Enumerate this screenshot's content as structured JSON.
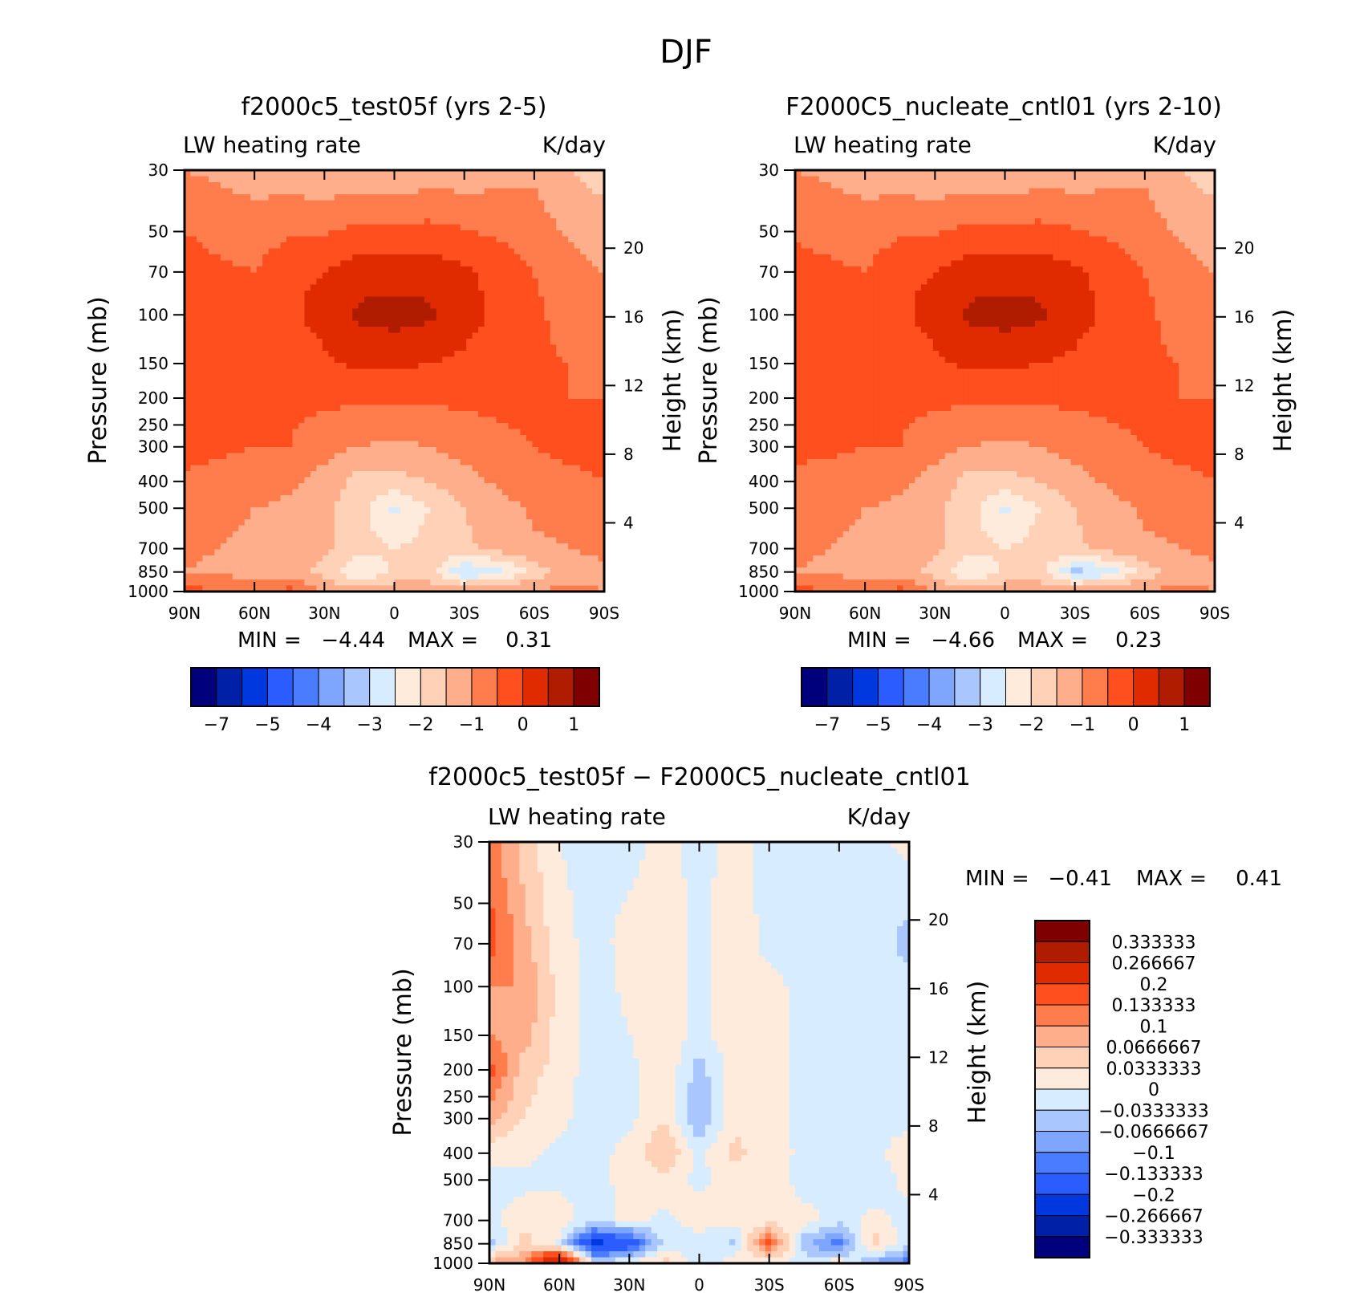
{
  "figure": {
    "title": "DJF"
  },
  "colors": {
    "main_scale": [
      "#00007c",
      "#0020a8",
      "#0038e0",
      "#2a5cff",
      "#4a7cff",
      "#7ea6ff",
      "#aac6ff",
      "#d8ecff",
      "#ffebdc",
      "#ffd1b6",
      "#ffae8c",
      "#ff7d4c",
      "#ff4f1e",
      "#e02a00",
      "#b01c00",
      "#7e0000"
    ],
    "diff_scale": [
      "#00007c",
      "#0020a8",
      "#0038e0",
      "#2a5cff",
      "#4a7cff",
      "#7ea6ff",
      "#aac6ff",
      "#d8ecff",
      "#ffebdc",
      "#ffd1b6",
      "#ffae8c",
      "#ff7d4c",
      "#ff4f1e",
      "#e02a00",
      "#b01c00",
      "#7e0000"
    ]
  },
  "chart_data": [
    {
      "type": "heatmap",
      "title": "f2000c5_test05f (yrs 2-5)",
      "left_label": "LW heating rate",
      "right_label": "K/day",
      "xlabel": "",
      "ylabel": "Pressure (mb)",
      "y2label": "Height (km)",
      "x_ticks": [
        "90N",
        "60N",
        "30N",
        "0",
        "30S",
        "60S",
        "90S"
      ],
      "x_range": [
        90,
        -90
      ],
      "y_ticks": [
        30,
        50,
        70,
        100,
        150,
        200,
        250,
        300,
        400,
        500,
        700,
        850,
        1000
      ],
      "y_range": [
        30,
        1000
      ],
      "y_scale": "log",
      "y2_ticks": [
        20,
        16,
        12,
        8,
        4
      ],
      "min_label": "MIN =",
      "min_value": "−4.44",
      "max_label": "MAX =",
      "max_value": "0.31",
      "colorbar_labels": [
        "−7",
        "−5",
        "−4",
        "−3",
        "−2",
        "−1",
        "0",
        "1"
      ],
      "field": {
        "lat": [
          90,
          75,
          60,
          45,
          30,
          15,
          0,
          -15,
          -30,
          -45,
          -60,
          -75,
          -90
        ],
        "p": [
          30,
          70,
          100,
          150,
          200,
          300,
          400,
          500,
          700,
          850,
          1000
        ],
        "values": [
          [
            -1.5,
            -1.6,
            -1.7,
            -1.8,
            -1.9,
            -1.9,
            -1.9,
            -1.8,
            -1.8,
            -1.7,
            -1.6,
            -2.0,
            -2.2
          ],
          [
            -0.7,
            -0.9,
            -1.0,
            -0.6,
            -0.5,
            -0.2,
            -0.2,
            -0.2,
            -0.4,
            -0.7,
            -1.0,
            -1.3,
            -1.5
          ],
          [
            -0.5,
            -0.8,
            -0.8,
            -0.6,
            -0.3,
            0.1,
            0.2,
            0.1,
            -0.3,
            -0.6,
            -0.9,
            -1.2,
            -1.4
          ],
          [
            -0.5,
            -0.8,
            -0.9,
            -0.8,
            -0.6,
            -0.4,
            -0.4,
            -0.5,
            -0.6,
            -0.8,
            -0.9,
            -1.0,
            -1.1
          ],
          [
            -0.6,
            -0.8,
            -0.9,
            -0.9,
            -0.9,
            -0.9,
            -0.9,
            -0.9,
            -0.9,
            -0.9,
            -0.9,
            -1.0,
            -1.0
          ],
          [
            -0.8,
            -0.9,
            -1.0,
            -1.0,
            -1.3,
            -1.5,
            -1.6,
            -1.5,
            -1.3,
            -1.1,
            -1.0,
            -0.9,
            -0.9
          ],
          [
            -1.1,
            -1.2,
            -1.2,
            -1.4,
            -1.7,
            -2.2,
            -2.2,
            -2.0,
            -1.7,
            -1.4,
            -1.2,
            -1.1,
            -1.0
          ],
          [
            -1.3,
            -1.4,
            -1.5,
            -1.6,
            -1.9,
            -2.3,
            -3.1,
            -2.5,
            -2.0,
            -1.7,
            -1.4,
            -1.3,
            -1.2
          ],
          [
            -1.4,
            -1.5,
            -1.6,
            -1.7,
            -1.9,
            -2.3,
            -2.5,
            -2.3,
            -2.1,
            -1.8,
            -1.6,
            -1.5,
            -1.4
          ],
          [
            -1.5,
            -1.6,
            -1.7,
            -1.8,
            -2.2,
            -3.0,
            -2.4,
            -2.2,
            -3.6,
            -3.2,
            -2.3,
            -1.7,
            -1.6
          ],
          [
            -0.8,
            -1.0,
            -1.2,
            -0.8,
            -1.6,
            -1.8,
            -1.6,
            -1.8,
            -1.6,
            -1.5,
            -1.4,
            -1.4,
            -1.5
          ]
        ]
      }
    },
    {
      "type": "heatmap",
      "title": "F2000C5_nucleate_cntl01 (yrs 2-10)",
      "left_label": "LW heating rate",
      "right_label": "K/day",
      "xlabel": "",
      "ylabel": "Pressure (mb)",
      "y2label": "Height (km)",
      "x_ticks": [
        "90N",
        "60N",
        "30N",
        "0",
        "30S",
        "60S",
        "90S"
      ],
      "x_range": [
        90,
        -90
      ],
      "y_ticks": [
        30,
        50,
        70,
        100,
        150,
        200,
        250,
        300,
        400,
        500,
        700,
        850,
        1000
      ],
      "y_range": [
        30,
        1000
      ],
      "y_scale": "log",
      "y2_ticks": [
        20,
        16,
        12,
        8,
        4
      ],
      "min_label": "MIN =",
      "min_value": "−4.66",
      "max_label": "MAX =",
      "max_value": "0.23",
      "colorbar_labels": [
        "−7",
        "−5",
        "−4",
        "−3",
        "−2",
        "−1",
        "0",
        "1"
      ],
      "field": {
        "lat": [
          90,
          75,
          60,
          45,
          30,
          15,
          0,
          -15,
          -30,
          -45,
          -60,
          -75,
          -90
        ],
        "p": [
          30,
          70,
          100,
          150,
          200,
          300,
          400,
          500,
          700,
          850,
          1000
        ],
        "values": [
          [
            -1.5,
            -1.6,
            -1.7,
            -1.8,
            -1.9,
            -1.9,
            -1.9,
            -1.8,
            -1.8,
            -1.7,
            -1.6,
            -2.0,
            -2.2
          ],
          [
            -0.8,
            -0.9,
            -1.0,
            -0.6,
            -0.5,
            -0.2,
            -0.2,
            -0.2,
            -0.4,
            -0.7,
            -1.0,
            -1.3,
            -1.5
          ],
          [
            -0.7,
            -0.9,
            -0.8,
            -0.6,
            -0.3,
            0.1,
            0.2,
            0.1,
            -0.3,
            -0.6,
            -0.9,
            -1.2,
            -1.4
          ],
          [
            -0.8,
            -0.9,
            -0.9,
            -0.8,
            -0.6,
            -0.4,
            -0.4,
            -0.5,
            -0.6,
            -0.8,
            -0.9,
            -1.0,
            -1.1
          ],
          [
            -0.8,
            -0.9,
            -0.9,
            -0.9,
            -0.9,
            -0.9,
            -0.9,
            -0.9,
            -0.9,
            -0.9,
            -0.9,
            -1.0,
            -1.0
          ],
          [
            -0.9,
            -0.9,
            -1.0,
            -1.0,
            -1.3,
            -1.5,
            -1.6,
            -1.5,
            -1.3,
            -1.1,
            -1.0,
            -0.9,
            -0.9
          ],
          [
            -1.1,
            -1.2,
            -1.2,
            -1.4,
            -1.7,
            -2.2,
            -2.2,
            -2.0,
            -1.7,
            -1.4,
            -1.2,
            -1.1,
            -1.0
          ],
          [
            -1.3,
            -1.4,
            -1.5,
            -1.6,
            -1.9,
            -2.3,
            -3.1,
            -2.5,
            -2.0,
            -1.7,
            -1.4,
            -1.3,
            -1.2
          ],
          [
            -1.4,
            -1.5,
            -1.6,
            -1.7,
            -1.9,
            -2.3,
            -2.5,
            -2.3,
            -2.1,
            -1.8,
            -1.6,
            -1.5,
            -1.4
          ],
          [
            -1.5,
            -1.6,
            -1.7,
            -1.8,
            -2.2,
            -3.0,
            -2.4,
            -2.2,
            -3.7,
            -3.3,
            -2.3,
            -1.7,
            -1.6
          ],
          [
            -0.8,
            -1.0,
            -1.2,
            -0.8,
            -1.6,
            -1.8,
            -1.6,
            -1.8,
            -1.6,
            -1.5,
            -1.4,
            -1.4,
            -1.5
          ]
        ]
      }
    },
    {
      "type": "heatmap",
      "title": "f2000c5_test05f − F2000C5_nucleate_cntl01",
      "left_label": "LW heating rate",
      "right_label": "K/day",
      "xlabel": "",
      "ylabel": "Pressure (mb)",
      "y2label": "Height (km)",
      "x_ticks": [
        "90N",
        "60N",
        "30N",
        "0",
        "30S",
        "60S",
        "90S"
      ],
      "x_range": [
        90,
        -90
      ],
      "y_ticks": [
        30,
        50,
        70,
        100,
        150,
        200,
        250,
        300,
        400,
        500,
        700,
        850,
        1000
      ],
      "y_range": [
        30,
        1000
      ],
      "y_scale": "log",
      "y2_ticks": [
        20,
        16,
        12,
        8,
        4
      ],
      "min_label": "MIN =",
      "min_value": "−0.41",
      "max_label": "MAX =",
      "max_value": "0.41",
      "colorbar_labels": [
        "0.333333",
        "0.266667",
        "0.2",
        "0.133333",
        "0.1",
        "0.0666667",
        "0.0333333",
        "0",
        "−0.0333333",
        "−0.0666667",
        "−0.1",
        "−0.133333",
        "−0.2",
        "−0.266667",
        "−0.333333"
      ],
      "field": {
        "lat": [
          90,
          75,
          60,
          45,
          30,
          15,
          0,
          -15,
          -30,
          -45,
          -60,
          -75,
          -90
        ],
        "p": [
          30,
          70,
          100,
          150,
          200,
          300,
          400,
          500,
          700,
          850,
          1000
        ],
        "values": [
          [
            0.12,
            0.05,
            0.0,
            -0.01,
            -0.01,
            0.01,
            -0.01,
            0.01,
            -0.01,
            -0.01,
            -0.01,
            -0.01,
            0.01
          ],
          [
            0.15,
            0.08,
            0.01,
            -0.01,
            0.01,
            0.02,
            -0.01,
            0.02,
            -0.01,
            -0.01,
            -0.02,
            -0.01,
            -0.05
          ],
          [
            0.1,
            0.1,
            0.02,
            -0.02,
            0.01,
            0.02,
            -0.01,
            0.02,
            0.01,
            -0.01,
            -0.02,
            -0.01,
            -0.02
          ],
          [
            0.1,
            0.08,
            0.02,
            -0.02,
            0.0,
            0.02,
            -0.01,
            0.02,
            0.01,
            -0.01,
            -0.02,
            -0.01,
            -0.01
          ],
          [
            0.15,
            0.05,
            0.02,
            -0.02,
            -0.01,
            0.03,
            -0.05,
            0.02,
            0.01,
            -0.01,
            -0.01,
            -0.01,
            -0.01
          ],
          [
            0.08,
            0.03,
            0.01,
            -0.02,
            -0.01,
            0.03,
            -0.07,
            0.03,
            0.01,
            -0.01,
            -0.01,
            -0.01,
            -0.01
          ],
          [
            0.01,
            0.01,
            -0.01,
            -0.01,
            0.01,
            0.07,
            -0.01,
            0.04,
            0.02,
            -0.01,
            -0.01,
            -0.01,
            0.02
          ],
          [
            -0.01,
            -0.01,
            -0.01,
            -0.01,
            0.01,
            0.02,
            -0.01,
            0.02,
            0.03,
            -0.02,
            -0.01,
            -0.02,
            0.01
          ],
          [
            -0.01,
            0.02,
            0.02,
            -0.02,
            0.01,
            -0.01,
            0.02,
            0.01,
            0.02,
            0.02,
            -0.02,
            0.01,
            -0.01
          ],
          [
            -0.05,
            0.05,
            -0.01,
            -0.22,
            -0.18,
            -0.02,
            -0.02,
            -0.04,
            0.15,
            -0.06,
            -0.12,
            0.05,
            -0.03
          ],
          [
            0.08,
            0.1,
            0.32,
            -0.02,
            0.01,
            0.05,
            -0.02,
            0.02,
            0.01,
            -0.01,
            0.03,
            -0.08,
            -0.12
          ]
        ]
      }
    }
  ]
}
